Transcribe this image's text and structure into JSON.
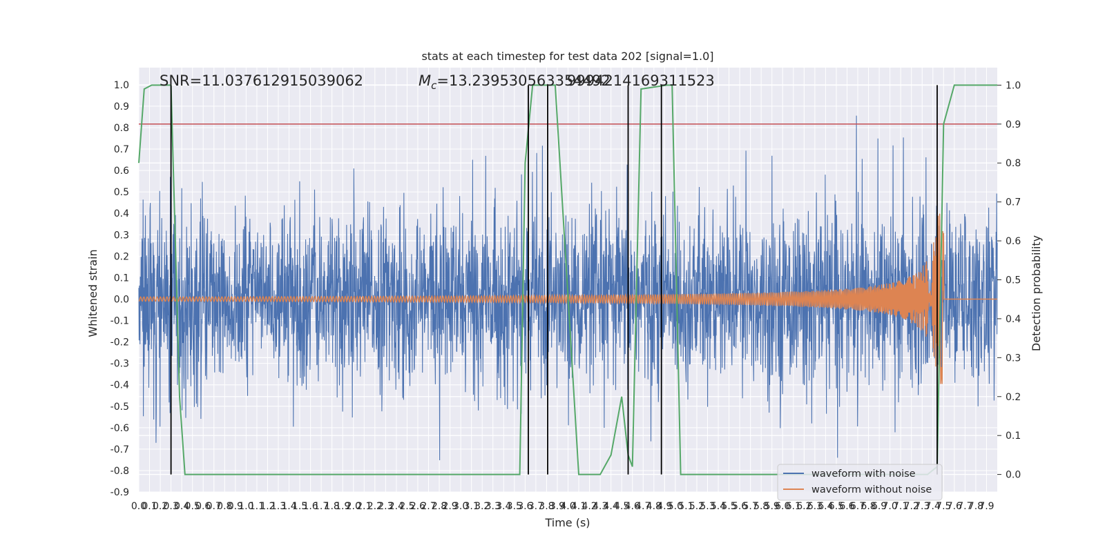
{
  "chart_data": {
    "type": "line",
    "title": "stats at each timestep for test data 202 [signal=1.0]",
    "xlabel": "Time (s)",
    "ylabel": "Whitened strain",
    "y2label": "Detection probability",
    "xlim": [
      0,
      8
    ],
    "ylim": [
      -0.9,
      1.08
    ],
    "y2lim": [
      -0.045,
      1.045
    ],
    "x_ticks": [
      "0.0",
      "0.1",
      "0.2",
      "0.3",
      "0.4",
      "0.5",
      "0.6",
      "0.7",
      "0.8",
      "0.9",
      "1.0",
      "1.1",
      "1.2",
      "1.3",
      "1.4",
      "1.5",
      "1.6",
      "1.7",
      "1.8",
      "1.9",
      "2.0",
      "2.1",
      "2.2",
      "2.3",
      "2.4",
      "2.5",
      "2.6",
      "2.7",
      "2.8",
      "2.9",
      "3.0",
      "3.1",
      "3.2",
      "3.3",
      "3.4",
      "3.5",
      "3.6",
      "3.7",
      "3.8",
      "3.9",
      "4.0",
      "4.1",
      "4.2",
      "4.3",
      "4.4",
      "4.5",
      "4.6",
      "4.7",
      "4.8",
      "4.9",
      "5.0",
      "5.1",
      "5.2",
      "5.3",
      "5.4",
      "5.5",
      "5.6",
      "5.7",
      "5.8",
      "5.9",
      "6.0",
      "6.1",
      "6.2",
      "6.3",
      "6.4",
      "6.5",
      "6.6",
      "6.7",
      "6.8",
      "6.9",
      "7.0",
      "7.1",
      "7.2",
      "7.3",
      "7.4",
      "7.5",
      "7.6",
      "7.7",
      "7.8",
      "7.9"
    ],
    "y_ticks": [
      "-0.9",
      "-0.8",
      "-0.7",
      "-0.6",
      "-0.5",
      "-0.4",
      "-0.3",
      "-0.2",
      "-0.1",
      "0.0",
      "0.1",
      "0.2",
      "0.3",
      "0.4",
      "0.5",
      "0.6",
      "0.7",
      "0.8",
      "0.9",
      "1.0"
    ],
    "y2_ticks": [
      "0.0",
      "0.1",
      "0.2",
      "0.3",
      "0.4",
      "0.5",
      "0.6",
      "0.7",
      "0.8",
      "0.9",
      "1.0"
    ],
    "annotations": {
      "snr": "SNR=11.037612915039062",
      "mc_symbol": "M",
      "mc_sub": "c",
      "mc_value": "=13.239530563354492",
      "mc_value_overlap": "9994214169311523"
    },
    "threshold": {
      "axis": "right",
      "value": 0.9
    },
    "grid": true,
    "legend_position": "bottom-right",
    "series": [
      {
        "name": "waveform with noise",
        "axis": "left",
        "style": "noise",
        "description_range": [
          -0.8,
          1.0
        ]
      },
      {
        "name": "waveform without noise",
        "axis": "left",
        "style": "chirp",
        "merger_time": 7.5,
        "peak": 0.4,
        "trough": -0.33
      },
      {
        "name": "",
        "axis": "right",
        "style": "probability",
        "x": [
          0.0,
          0.05,
          0.12,
          0.2,
          0.3,
          0.35,
          0.38,
          0.43,
          3.55,
          3.6,
          3.67,
          3.85,
          3.88,
          3.92,
          4.1,
          4.3,
          4.4,
          4.5,
          4.56,
          4.6,
          4.68,
          4.92,
          4.97,
          5.05,
          7.35,
          7.44,
          7.5,
          7.6,
          8.0
        ],
        "values": [
          0.8,
          0.99,
          1.0,
          1.0,
          1.0,
          0.5,
          0.2,
          0.0,
          0.0,
          0.8,
          1.0,
          1.0,
          1.0,
          0.82,
          0.0,
          0.0,
          0.05,
          0.2,
          0.05,
          0.02,
          0.99,
          1.0,
          1.0,
          0.0,
          0.0,
          0.02,
          0.9,
          1.0,
          1.0
        ]
      }
    ],
    "vertical_markers": [
      0.3,
      3.63,
      3.81,
      4.56,
      4.87,
      7.44
    ]
  },
  "colors": {
    "noise": "#4c72b0",
    "chirp": "#dd8452",
    "probability": "#55a868",
    "threshold": "#c44e52",
    "markers": "#000000",
    "axes_bg": "#eaeaf2",
    "grid": "#ffffff"
  }
}
